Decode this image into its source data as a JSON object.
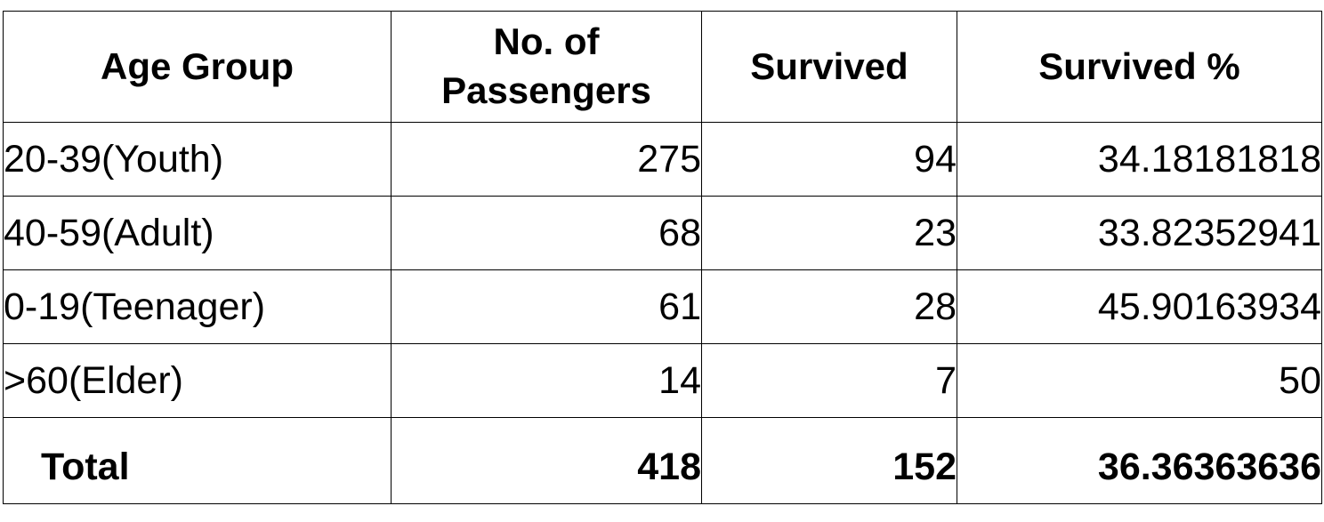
{
  "table": {
    "headers": [
      "Age Group",
      "No. of Passengers",
      "Survived",
      "Survived %"
    ],
    "rows": [
      {
        "age_group": "20-39(Youth)",
        "passengers": "275",
        "survived": "94",
        "survived_pct": "34.18181818"
      },
      {
        "age_group": "40-59(Adult)",
        "passengers": "68",
        "survived": "23",
        "survived_pct": "33.82352941"
      },
      {
        "age_group": "0-19(Teenager)",
        "passengers": "61",
        "survived": "28",
        "survived_pct": "45.90163934"
      },
      {
        "age_group": ">60(Elder)",
        "passengers": "14",
        "survived": "7",
        "survived_pct": "50"
      }
    ],
    "total": {
      "label": "Total",
      "passengers": "418",
      "survived": "152",
      "survived_pct": "36.36363636"
    }
  }
}
